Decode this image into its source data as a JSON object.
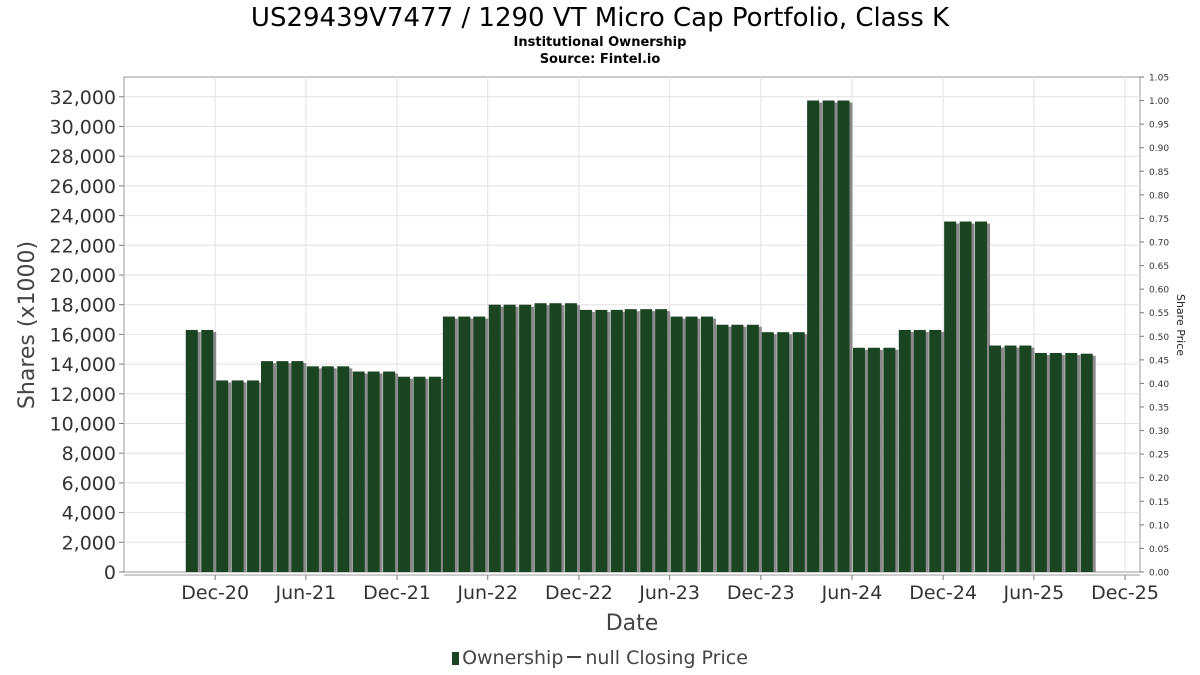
{
  "chart_data": {
    "type": "bar",
    "title": "US29439V7477 / 1290 VT Micro Cap Portfolio, Class K",
    "subtitle": "Institutional Ownership",
    "source": "Source: Fintel.io",
    "xlabel": "Date",
    "ylabel": "Shares (x1000)",
    "y2label": "Share Price",
    "ylim": [
      0,
      33333
    ],
    "y2lim": [
      0,
      1.05
    ],
    "yticks": [
      "0",
      "2,000",
      "4,000",
      "6,000",
      "8,000",
      "10,000",
      "12,000",
      "14,000",
      "16,000",
      "18,000",
      "20,000",
      "22,000",
      "24,000",
      "26,000",
      "28,000",
      "30,000",
      "32,000"
    ],
    "y2ticks": [
      "0.00",
      "0.05",
      "0.10",
      "0.15",
      "0.20",
      "0.25",
      "0.30",
      "0.35",
      "0.40",
      "0.45",
      "0.50",
      "0.55",
      "0.60",
      "0.65",
      "0.70",
      "0.75",
      "0.80",
      "0.85",
      "0.90",
      "0.95",
      "1.00",
      "1.05"
    ],
    "xticks": [
      "Dec-20",
      "Jun-21",
      "Dec-21",
      "Jun-22",
      "Dec-22",
      "Jun-23",
      "Dec-23",
      "Jun-24",
      "Dec-24",
      "Jun-25",
      "Dec-25"
    ],
    "xrange": [
      "2020-06-01",
      "2025-12-31"
    ],
    "grid": true,
    "legend_position": "bottom",
    "series": [
      {
        "name": "Ownership",
        "color": "#1a4422",
        "points": [
          {
            "date": "2020-10-15",
            "value": 16300
          },
          {
            "date": "2020-11-15",
            "value": 16300
          },
          {
            "date": "2020-12-15",
            "value": 12900
          },
          {
            "date": "2021-01-15",
            "value": 12900
          },
          {
            "date": "2021-02-15",
            "value": 12900
          },
          {
            "date": "2021-03-15",
            "value": 14200
          },
          {
            "date": "2021-04-15",
            "value": 14200
          },
          {
            "date": "2021-05-15",
            "value": 14200
          },
          {
            "date": "2021-06-15",
            "value": 13850
          },
          {
            "date": "2021-07-15",
            "value": 13850
          },
          {
            "date": "2021-08-15",
            "value": 13850
          },
          {
            "date": "2021-09-15",
            "value": 13500
          },
          {
            "date": "2021-10-15",
            "value": 13500
          },
          {
            "date": "2021-11-15",
            "value": 13500
          },
          {
            "date": "2021-12-15",
            "value": 13150
          },
          {
            "date": "2022-01-15",
            "value": 13150
          },
          {
            "date": "2022-02-15",
            "value": 13150
          },
          {
            "date": "2022-03-15",
            "value": 17200
          },
          {
            "date": "2022-04-15",
            "value": 17200
          },
          {
            "date": "2022-05-15",
            "value": 17200
          },
          {
            "date": "2022-06-15",
            "value": 18000
          },
          {
            "date": "2022-07-15",
            "value": 18000
          },
          {
            "date": "2022-08-15",
            "value": 18000
          },
          {
            "date": "2022-09-15",
            "value": 18100
          },
          {
            "date": "2022-10-15",
            "value": 18100
          },
          {
            "date": "2022-11-15",
            "value": 18100
          },
          {
            "date": "2022-12-15",
            "value": 17650
          },
          {
            "date": "2023-01-15",
            "value": 17650
          },
          {
            "date": "2023-02-15",
            "value": 17650
          },
          {
            "date": "2023-03-15",
            "value": 17700
          },
          {
            "date": "2023-04-15",
            "value": 17700
          },
          {
            "date": "2023-05-15",
            "value": 17700
          },
          {
            "date": "2023-06-15",
            "value": 17200
          },
          {
            "date": "2023-07-15",
            "value": 17200
          },
          {
            "date": "2023-08-15",
            "value": 17200
          },
          {
            "date": "2023-09-15",
            "value": 16650
          },
          {
            "date": "2023-10-15",
            "value": 16650
          },
          {
            "date": "2023-11-15",
            "value": 16650
          },
          {
            "date": "2023-12-15",
            "value": 16150
          },
          {
            "date": "2024-01-15",
            "value": 16150
          },
          {
            "date": "2024-02-15",
            "value": 16150
          },
          {
            "date": "2024-03-15",
            "value": 31750
          },
          {
            "date": "2024-04-15",
            "value": 31750
          },
          {
            "date": "2024-05-15",
            "value": 31750
          },
          {
            "date": "2024-06-15",
            "value": 15100
          },
          {
            "date": "2024-07-15",
            "value": 15100
          },
          {
            "date": "2024-08-15",
            "value": 15100
          },
          {
            "date": "2024-09-15",
            "value": 16300
          },
          {
            "date": "2024-10-15",
            "value": 16300
          },
          {
            "date": "2024-11-15",
            "value": 16300
          },
          {
            "date": "2024-12-15",
            "value": 23600
          },
          {
            "date": "2025-01-15",
            "value": 23600
          },
          {
            "date": "2025-02-15",
            "value": 23600
          },
          {
            "date": "2025-03-15",
            "value": 15250
          },
          {
            "date": "2025-04-15",
            "value": 15250
          },
          {
            "date": "2025-05-15",
            "value": 15250
          },
          {
            "date": "2025-06-15",
            "value": 14750
          },
          {
            "date": "2025-07-15",
            "value": 14750
          },
          {
            "date": "2025-08-15",
            "value": 14750
          },
          {
            "date": "2025-09-15",
            "value": 14700
          }
        ]
      },
      {
        "name": "null Closing Price",
        "color": "#444444",
        "points": []
      }
    ]
  }
}
